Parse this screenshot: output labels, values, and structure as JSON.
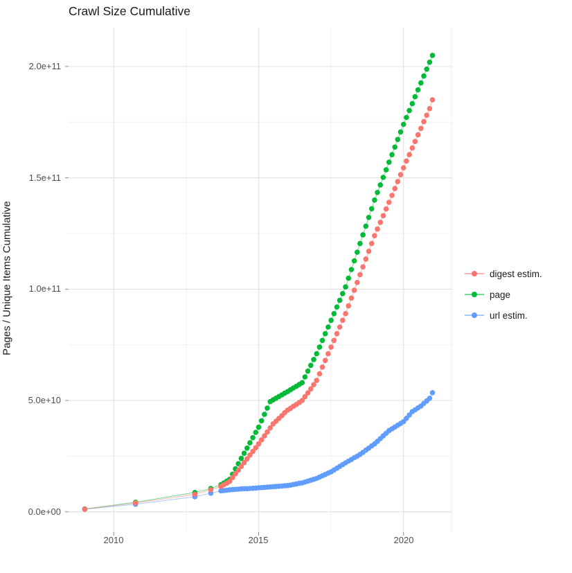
{
  "title": "Crawl Size Cumulative",
  "y_axis": {
    "label": "Pages / Unique Items Cumulative",
    "ticks": [
      {
        "label": "0.0e+00",
        "value_e9": 0
      },
      {
        "label": "5.0e+10",
        "value_e9": 50
      },
      {
        "label": "1.0e+11",
        "value_e9": 100
      },
      {
        "label": "1.5e+11",
        "value_e9": 150
      },
      {
        "label": "2.0e+11",
        "value_e9": 200
      }
    ],
    "minor_e9": [
      25,
      75,
      125,
      175
    ]
  },
  "x_axis": {
    "ticks": [
      {
        "label": "2010",
        "value": 2010
      },
      {
        "label": "2015",
        "value": 2015
      },
      {
        "label": "2020",
        "value": 2020
      }
    ],
    "minor": [
      2012.5,
      2017.5,
      2021.66
    ]
  },
  "legend": [
    {
      "name": "digest estim.",
      "color": "#F8766D"
    },
    {
      "name": "page",
      "color": "#00BA38"
    },
    {
      "name": "url estim.",
      "color": "#619CFF"
    }
  ],
  "colors": {
    "grid_major": "#e3e3e3",
    "grid_minor": "#f0f0f0",
    "tick_mark": "#8c8c8c",
    "background": "#ffffff"
  },
  "chart_data": {
    "type": "scatter",
    "title": "Crawl Size Cumulative",
    "xlabel": "",
    "ylabel": "Pages / Unique Items Cumulative",
    "value_unit": "pages, billions (1e9); y axis shown in scientific notation",
    "xlim": [
      2008.44,
      2021.68
    ],
    "ylim_e9": [
      -9.1,
      217.4
    ],
    "grid": true,
    "legend_position": "right",
    "series": [
      {
        "name": "page",
        "color": "#00BA38",
        "points": [
          [
            2009.0,
            1.3
          ],
          [
            2010.75,
            4.3
          ],
          [
            2012.8,
            8.7
          ],
          [
            2013.35,
            10.5
          ],
          [
            2013.7,
            12.2
          ],
          [
            2013.8,
            13.0
          ],
          [
            2013.9,
            13.8
          ],
          [
            2014.0,
            14.6
          ],
          [
            2014.1,
            16.9
          ],
          [
            2014.2,
            19.3
          ],
          [
            2014.3,
            21.6
          ],
          [
            2014.4,
            24.0
          ],
          [
            2014.5,
            26.3
          ],
          [
            2014.6,
            28.6
          ],
          [
            2014.7,
            31.0
          ],
          [
            2014.8,
            33.3
          ],
          [
            2014.9,
            35.7
          ],
          [
            2015.0,
            38.0
          ],
          [
            2015.1,
            40.9
          ],
          [
            2015.2,
            43.8
          ],
          [
            2015.3,
            46.6
          ],
          [
            2015.4,
            49.5
          ],
          [
            2015.5,
            50.3
          ],
          [
            2015.6,
            51.0
          ],
          [
            2015.7,
            51.8
          ],
          [
            2015.8,
            52.5
          ],
          [
            2015.9,
            53.3
          ],
          [
            2016.0,
            54.0
          ],
          [
            2016.1,
            54.8
          ],
          [
            2016.2,
            55.6
          ],
          [
            2016.3,
            56.4
          ],
          [
            2016.4,
            57.2
          ],
          [
            2016.5,
            58.0
          ],
          [
            2016.6,
            60.6
          ],
          [
            2016.7,
            63.2
          ],
          [
            2016.8,
            65.8
          ],
          [
            2016.9,
            68.4
          ],
          [
            2017.0,
            71.0
          ],
          [
            2017.1,
            74.0
          ],
          [
            2017.2,
            77.0
          ],
          [
            2017.3,
            80.0
          ],
          [
            2017.4,
            83.0
          ],
          [
            2017.5,
            86.0
          ],
          [
            2017.6,
            89.0
          ],
          [
            2017.7,
            92.0
          ],
          [
            2017.8,
            95.0
          ],
          [
            2017.9,
            98.0
          ],
          [
            2018.0,
            101.0
          ],
          [
            2018.1,
            104.9
          ],
          [
            2018.2,
            108.8
          ],
          [
            2018.3,
            112.7
          ],
          [
            2018.4,
            116.6
          ],
          [
            2018.5,
            120.5
          ],
          [
            2018.6,
            124.4
          ],
          [
            2018.7,
            128.3
          ],
          [
            2018.8,
            132.2
          ],
          [
            2018.9,
            136.1
          ],
          [
            2019.0,
            140.0
          ],
          [
            2019.1,
            143.4
          ],
          [
            2019.2,
            146.8
          ],
          [
            2019.3,
            150.2
          ],
          [
            2019.4,
            153.6
          ],
          [
            2019.5,
            157.0
          ],
          [
            2019.6,
            160.4
          ],
          [
            2019.7,
            163.8
          ],
          [
            2019.8,
            167.2
          ],
          [
            2019.9,
            170.6
          ],
          [
            2020.0,
            174.0
          ],
          [
            2020.1,
            177.1
          ],
          [
            2020.2,
            180.2
          ],
          [
            2020.3,
            183.3
          ],
          [
            2020.4,
            186.4
          ],
          [
            2020.5,
            189.5
          ],
          [
            2020.6,
            192.6
          ],
          [
            2020.7,
            195.7
          ],
          [
            2020.8,
            198.8
          ],
          [
            2020.9,
            201.9
          ],
          [
            2021.0,
            205.0
          ]
        ]
      },
      {
        "name": "url estim.",
        "color": "#619CFF",
        "points": [
          [
            2009.0,
            1.2
          ],
          [
            2010.75,
            3.4
          ],
          [
            2012.8,
            6.8
          ],
          [
            2013.35,
            8.4
          ],
          [
            2013.7,
            9.4
          ],
          [
            2013.8,
            9.6
          ],
          [
            2013.9,
            9.7
          ],
          [
            2014.0,
            9.9
          ],
          [
            2014.1,
            10.0
          ],
          [
            2014.2,
            10.1
          ],
          [
            2014.3,
            10.2
          ],
          [
            2014.4,
            10.3
          ],
          [
            2014.5,
            10.4
          ],
          [
            2014.6,
            10.4
          ],
          [
            2014.7,
            10.5
          ],
          [
            2014.8,
            10.6
          ],
          [
            2014.9,
            10.7
          ],
          [
            2015.0,
            10.8
          ],
          [
            2015.1,
            10.9
          ],
          [
            2015.2,
            11.0
          ],
          [
            2015.3,
            11.1
          ],
          [
            2015.4,
            11.2
          ],
          [
            2015.5,
            11.3
          ],
          [
            2015.6,
            11.4
          ],
          [
            2015.7,
            11.5
          ],
          [
            2015.8,
            11.6
          ],
          [
            2015.9,
            11.7
          ],
          [
            2016.0,
            11.8
          ],
          [
            2016.1,
            12.0
          ],
          [
            2016.2,
            12.3
          ],
          [
            2016.3,
            12.5
          ],
          [
            2016.4,
            12.8
          ],
          [
            2016.5,
            13.0
          ],
          [
            2016.6,
            13.4
          ],
          [
            2016.7,
            13.8
          ],
          [
            2016.8,
            14.2
          ],
          [
            2016.9,
            14.6
          ],
          [
            2017.0,
            15.0
          ],
          [
            2017.1,
            15.6
          ],
          [
            2017.2,
            16.2
          ],
          [
            2017.3,
            16.8
          ],
          [
            2017.4,
            17.4
          ],
          [
            2017.5,
            18.0
          ],
          [
            2017.6,
            18.8
          ],
          [
            2017.7,
            19.6
          ],
          [
            2017.8,
            20.4
          ],
          [
            2017.9,
            21.2
          ],
          [
            2018.0,
            22.0
          ],
          [
            2018.1,
            22.8
          ],
          [
            2018.2,
            23.5
          ],
          [
            2018.3,
            24.3
          ],
          [
            2018.4,
            25.0
          ],
          [
            2018.5,
            25.8
          ],
          [
            2018.6,
            26.7
          ],
          [
            2018.7,
            27.7
          ],
          [
            2018.8,
            28.6
          ],
          [
            2018.9,
            29.6
          ],
          [
            2019.0,
            30.5
          ],
          [
            2019.1,
            31.7
          ],
          [
            2019.2,
            32.9
          ],
          [
            2019.3,
            34.1
          ],
          [
            2019.4,
            35.3
          ],
          [
            2019.5,
            36.5
          ],
          [
            2019.6,
            37.3
          ],
          [
            2019.7,
            38.1
          ],
          [
            2019.8,
            38.9
          ],
          [
            2019.9,
            39.7
          ],
          [
            2020.0,
            40.5
          ],
          [
            2020.1,
            42.0
          ],
          [
            2020.2,
            43.5
          ],
          [
            2020.3,
            45.0
          ],
          [
            2020.4,
            45.8
          ],
          [
            2020.5,
            46.7
          ],
          [
            2020.6,
            47.5
          ],
          [
            2020.7,
            48.7
          ],
          [
            2020.8,
            49.8
          ],
          [
            2020.9,
            51.0
          ],
          [
            2021.0,
            53.5
          ]
        ]
      },
      {
        "name": "digest estim.",
        "color": "#F8766D",
        "points": [
          [
            2009.0,
            1.2
          ],
          [
            2010.75,
            4.0
          ],
          [
            2012.8,
            7.9
          ],
          [
            2013.35,
            9.9
          ],
          [
            2013.7,
            11.4
          ],
          [
            2013.8,
            12.2
          ],
          [
            2013.9,
            12.9
          ],
          [
            2014.0,
            13.7
          ],
          [
            2014.1,
            15.4
          ],
          [
            2014.2,
            17.1
          ],
          [
            2014.3,
            18.7
          ],
          [
            2014.4,
            20.4
          ],
          [
            2014.5,
            22.1
          ],
          [
            2014.6,
            23.8
          ],
          [
            2014.7,
            25.5
          ],
          [
            2014.8,
            27.1
          ],
          [
            2014.9,
            28.8
          ],
          [
            2015.0,
            30.5
          ],
          [
            2015.1,
            32.3
          ],
          [
            2015.2,
            34.1
          ],
          [
            2015.3,
            35.9
          ],
          [
            2015.4,
            37.7
          ],
          [
            2015.5,
            39.5
          ],
          [
            2015.6,
            40.7
          ],
          [
            2015.7,
            42.0
          ],
          [
            2015.8,
            43.2
          ],
          [
            2015.9,
            44.5
          ],
          [
            2016.0,
            45.7
          ],
          [
            2016.1,
            46.5
          ],
          [
            2016.2,
            47.4
          ],
          [
            2016.3,
            48.2
          ],
          [
            2016.4,
            49.1
          ],
          [
            2016.5,
            50.0
          ],
          [
            2016.6,
            51.7
          ],
          [
            2016.7,
            53.4
          ],
          [
            2016.8,
            55.2
          ],
          [
            2016.9,
            57.1
          ],
          [
            2017.0,
            59.0
          ],
          [
            2017.1,
            62.0
          ],
          [
            2017.2,
            65.0
          ],
          [
            2017.3,
            68.0
          ],
          [
            2017.4,
            71.0
          ],
          [
            2017.5,
            74.0
          ],
          [
            2017.6,
            77.0
          ],
          [
            2017.7,
            80.0
          ],
          [
            2017.8,
            83.0
          ],
          [
            2017.9,
            86.0
          ],
          [
            2018.0,
            89.0
          ],
          [
            2018.1,
            92.5
          ],
          [
            2018.2,
            96.0
          ],
          [
            2018.3,
            99.5
          ],
          [
            2018.4,
            103.0
          ],
          [
            2018.5,
            106.5
          ],
          [
            2018.6,
            110.0
          ],
          [
            2018.7,
            113.5
          ],
          [
            2018.8,
            117.0
          ],
          [
            2018.9,
            120.5
          ],
          [
            2019.0,
            124.0
          ],
          [
            2019.1,
            127.0
          ],
          [
            2019.2,
            130.0
          ],
          [
            2019.3,
            133.0
          ],
          [
            2019.4,
            136.0
          ],
          [
            2019.5,
            139.0
          ],
          [
            2019.6,
            142.1
          ],
          [
            2019.7,
            145.2
          ],
          [
            2019.8,
            148.3
          ],
          [
            2019.9,
            151.4
          ],
          [
            2020.0,
            154.5
          ],
          [
            2020.1,
            157.5
          ],
          [
            2020.2,
            160.4
          ],
          [
            2020.3,
            163.4
          ],
          [
            2020.4,
            166.3
          ],
          [
            2020.5,
            169.3
          ],
          [
            2020.6,
            172.2
          ],
          [
            2020.7,
            175.2
          ],
          [
            2020.8,
            178.1
          ],
          [
            2020.9,
            181.1
          ],
          [
            2021.0,
            185.0
          ]
        ]
      }
    ]
  }
}
